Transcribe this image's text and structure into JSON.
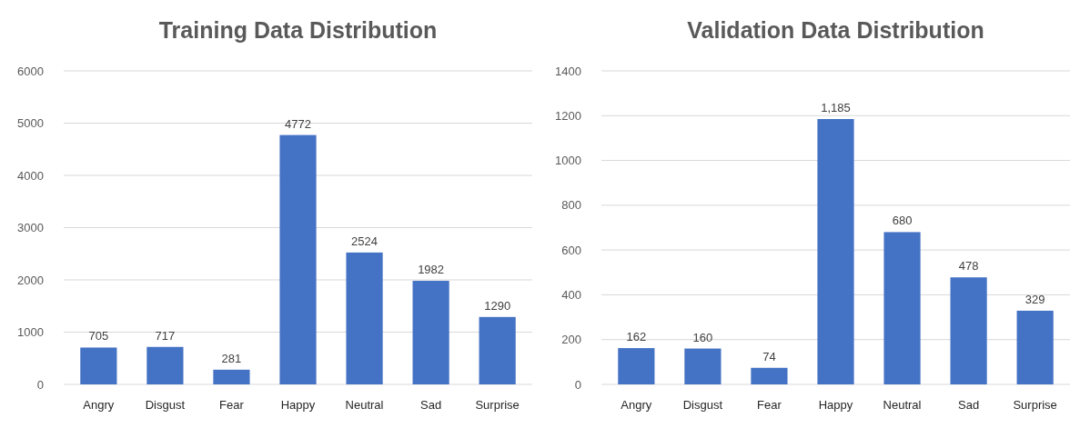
{
  "chart_data": [
    {
      "type": "bar",
      "title": "Training Data Distribution",
      "categories": [
        "Angry",
        "Disgust",
        "Fear",
        "Happy",
        "Neutral",
        "Sad",
        "Surprise"
      ],
      "values": [
        705,
        717,
        281,
        4772,
        2524,
        1982,
        1290
      ],
      "color": "#4472c4",
      "ylim": [
        0,
        6000
      ],
      "yticks": [
        0,
        1000,
        2000,
        3000,
        4000,
        5000,
        6000
      ],
      "grid": "y",
      "data_labels": true
    },
    {
      "type": "bar",
      "title": "Validation Data Distribution",
      "categories": [
        "Angry",
        "Disgust",
        "Fear",
        "Happy",
        "Neutral",
        "Sad",
        "Surprise"
      ],
      "values": [
        162,
        160,
        74,
        1185,
        680,
        478,
        329
      ],
      "value_labels": [
        "162",
        "160",
        "74",
        "1,185",
        "680",
        "478",
        "329"
      ],
      "color": "#4472c4",
      "ylim": [
        0,
        1400
      ],
      "yticks": [
        0,
        200,
        400,
        600,
        800,
        1000,
        1200,
        1400
      ],
      "grid": "y"
    }
  ]
}
